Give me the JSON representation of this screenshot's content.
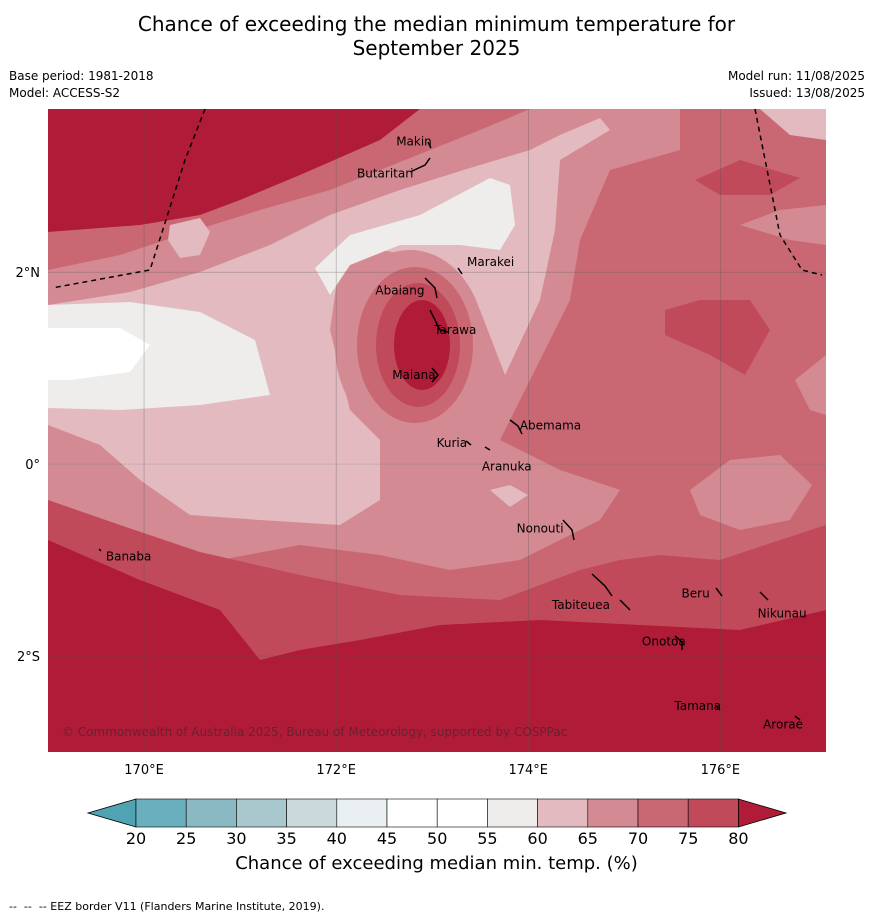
{
  "title_line1": "Chance of exceeding the median minimum temperature for",
  "title_line2": "September 2025",
  "meta_left": {
    "base_period": "Base period: 1981-2018",
    "model": "Model: ACCESS-S2"
  },
  "meta_right": {
    "model_run": "Model run: 11/08/2025",
    "issued": "Issued: 13/08/2025"
  },
  "copyright": "© Commonwealth of Australia 2025, Bureau of Meteorology, supported by COSPPac",
  "axes": {
    "lon_ticks": [
      {
        "value": 170,
        "label": "170°E"
      },
      {
        "value": 172,
        "label": "172°E"
      },
      {
        "value": 174,
        "label": "174°E"
      },
      {
        "value": 176,
        "label": "176°E"
      }
    ],
    "lat_ticks": [
      {
        "value": 2,
        "label": "2°N"
      },
      {
        "value": 0,
        "label": "0°"
      },
      {
        "value": -2,
        "label": "2°S"
      }
    ],
    "lon_range": [
      169.0,
      177.1
    ],
    "lat_range": [
      -3.0,
      3.7
    ]
  },
  "islands": [
    {
      "name": "Makin",
      "lon": 173.0,
      "lat": 3.36
    },
    {
      "name": "Butaritari",
      "lon": 172.8,
      "lat": 3.07
    },
    {
      "name": "Marakei",
      "lon": 173.3,
      "lat": 2.0
    },
    {
      "name": "Abaiang",
      "lon": 172.95,
      "lat": 1.85
    },
    {
      "name": "Tarawa",
      "lon": 173.0,
      "lat": 1.42
    },
    {
      "name": "Maiana",
      "lon": 173.0,
      "lat": 0.93
    },
    {
      "name": "Abemama",
      "lon": 173.85,
      "lat": 0.4
    },
    {
      "name": "Kuria",
      "lon": 173.4,
      "lat": 0.22
    },
    {
      "name": "Aranuka",
      "lon": 173.6,
      "lat": 0.16
    },
    {
      "name": "Nonouti",
      "lon": 174.4,
      "lat": -0.65
    },
    {
      "name": "Banaba",
      "lon": 169.54,
      "lat": -0.86
    },
    {
      "name": "Tabiteuea",
      "lon": 174.85,
      "lat": -1.3
    },
    {
      "name": "Beru",
      "lon": 175.95,
      "lat": -1.35
    },
    {
      "name": "Nikunau",
      "lon": 176.45,
      "lat": -1.37
    },
    {
      "name": "Onotoa",
      "lon": 175.6,
      "lat": -1.85
    },
    {
      "name": "Tamana",
      "lon": 175.98,
      "lat": -2.5
    },
    {
      "name": "Arorae",
      "lon": 176.82,
      "lat": -2.65
    }
  ],
  "colorbar": {
    "ticks": [
      "20",
      "25",
      "30",
      "35",
      "40",
      "45",
      "50",
      "55",
      "60",
      "65",
      "70",
      "75",
      "80"
    ],
    "colors": [
      "#6aafbd",
      "#8ab9c4",
      "#a8c8cd",
      "#cbd8dc",
      "#eaf0f1",
      "#ffffff",
      "#ffffff",
      "#eeedeb",
      "#e2bac0",
      "#d48a93",
      "#c96873",
      "#c04a5a"
    ],
    "under_color": "#4fa3b3",
    "over_color": "#b01c38",
    "label": "Chance of exceeding median min. temp. (%)"
  },
  "footnote": "--  --  -- EEZ border V11 (Flanders Marine Institute, 2019)."
}
